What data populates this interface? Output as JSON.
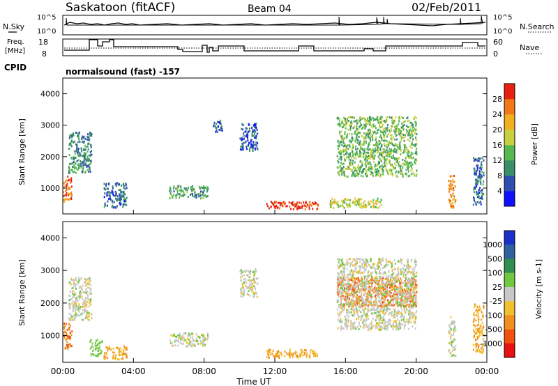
{
  "header": {
    "station": "Saskatoon (fitACF)",
    "beam": "Beam 04",
    "date": "02/Feb/2011"
  },
  "nsky_panel": {
    "left_label": "N.Sky",
    "right_label": "N.Search",
    "tick_top": "10^5",
    "tick_bottom": "10^0"
  },
  "freq_panel": {
    "left_label_line1": "Freq.",
    "left_label_line2": "[MHz]",
    "right_label": "Nave",
    "left_ticks": [
      "18",
      "8"
    ],
    "right_ticks": [
      "60",
      "0"
    ]
  },
  "cpid": {
    "label": "CPID",
    "mode": "normalsound (fast) -157"
  },
  "colors": {
    "power_scale": [
      "#1010ff",
      "#2f4fb0",
      "#3a8f6a",
      "#55b850",
      "#c8d040",
      "#f0b020",
      "#f07818",
      "#e82010"
    ],
    "velocity_scale": [
      "#1a30c8",
      "#3060a0",
      "#2f8f50",
      "#70c840",
      "#c8c8c8",
      "#f0c030",
      "#f09020",
      "#f05010",
      "#e81010"
    ]
  },
  "chart_data": [
    {
      "type": "heatmap",
      "panel": "power",
      "ylabel": "Slant Range [km]",
      "yticks": [
        "1000",
        "2000",
        "3000",
        "4000"
      ],
      "ylim": [
        180,
        4500
      ],
      "xlim": [
        0,
        24
      ],
      "colorbar_label": "Power [dB]",
      "colorbar_ticks": [
        "4",
        "8",
        "12",
        "16",
        "20",
        "24",
        "28"
      ],
      "colorbar_range": [
        0,
        32
      ],
      "echo_regions": [
        {
          "t0": 0.0,
          "t1": 0.5,
          "r0": 600,
          "r1": 1400,
          "level": 26
        },
        {
          "t0": 0.3,
          "t1": 1.6,
          "r0": 1500,
          "r1": 2800,
          "level": 10
        },
        {
          "t0": 2.3,
          "t1": 3.6,
          "r0": 400,
          "r1": 1200,
          "level": 8
        },
        {
          "t0": 6.0,
          "t1": 8.2,
          "r0": 700,
          "r1": 1100,
          "level": 12
        },
        {
          "t0": 8.5,
          "t1": 9.0,
          "r0": 2800,
          "r1": 3200,
          "level": 6
        },
        {
          "t0": 10.0,
          "t1": 11.0,
          "r0": 2200,
          "r1": 3100,
          "level": 6
        },
        {
          "t0": 11.5,
          "t1": 14.5,
          "r0": 350,
          "r1": 600,
          "level": 30
        },
        {
          "t0": 15.0,
          "t1": 18.0,
          "r0": 400,
          "r1": 700,
          "level": 18
        },
        {
          "t0": 15.5,
          "t1": 20.0,
          "r0": 1400,
          "r1": 3300,
          "level": 14
        },
        {
          "t0": 21.8,
          "t1": 22.2,
          "r0": 400,
          "r1": 1500,
          "level": 24
        },
        {
          "t0": 23.2,
          "t1": 23.8,
          "r0": 500,
          "r1": 2000,
          "level": 8
        }
      ]
    },
    {
      "type": "heatmap",
      "panel": "velocity",
      "ylabel": "Slant Range [km]",
      "yticks": [
        "1000",
        "2000",
        "3000",
        "4000"
      ],
      "ylim": [
        180,
        4500
      ],
      "xlim": [
        0,
        24
      ],
      "xlabel": "Time UT",
      "xticks": [
        "00:00",
        "04:00",
        "08:00",
        "12:00",
        "16:00",
        "20:00",
        "00:00"
      ],
      "colorbar_label": "Velocity [m s-1]",
      "colorbar_ticks": [
        "1000",
        "500",
        "100",
        "25",
        "-25",
        "-100",
        "-500",
        "-1000"
      ],
      "echo_regions": [
        {
          "t0": 0.0,
          "t1": 0.5,
          "r0": 600,
          "r1": 1400,
          "level": -500
        },
        {
          "t0": 0.3,
          "t1": 1.6,
          "r0": 1500,
          "r1": 2800,
          "level": 0
        },
        {
          "t0": 1.5,
          "t1": 2.2,
          "r0": 400,
          "r1": 900,
          "level": 60
        },
        {
          "t0": 2.3,
          "t1": 3.6,
          "r0": 300,
          "r1": 700,
          "level": -100
        },
        {
          "t0": 6.0,
          "t1": 8.2,
          "r0": 700,
          "r1": 1100,
          "level": 0
        },
        {
          "t0": 10.0,
          "t1": 11.0,
          "r0": 2200,
          "r1": 3100,
          "level": 0
        },
        {
          "t0": 11.5,
          "t1": 14.5,
          "r0": 350,
          "r1": 600,
          "level": -100
        },
        {
          "t0": 15.5,
          "t1": 20.0,
          "r0": 1900,
          "r1": 2800,
          "level": -500
        },
        {
          "t0": 15.5,
          "t1": 20.0,
          "r0": 1200,
          "r1": 3400,
          "level": 0
        },
        {
          "t0": 21.8,
          "t1": 22.2,
          "r0": 400,
          "r1": 1600,
          "level": 0
        },
        {
          "t0": 23.2,
          "t1": 23.8,
          "r0": 500,
          "r1": 2000,
          "level": -100
        }
      ]
    }
  ]
}
